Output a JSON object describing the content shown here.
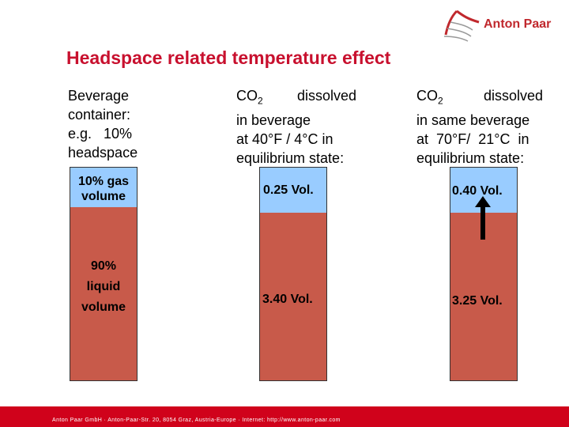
{
  "logo": {
    "text": "Anton Paar"
  },
  "title": "Headspace related temperature effect",
  "columns": [
    {
      "lines": [
        "Beverage",
        "container:",
        "e.g.   10%",
        "headspace"
      ]
    },
    {
      "co2": "CO",
      "co2_sub": "2",
      "after": "dissolved",
      "lines": [
        "in beverage",
        "at 40°F / 4°C in",
        "equilibrium state:"
      ]
    },
    {
      "co2": "CO",
      "co2_sub": "2",
      "after": "dissolved",
      "lines": [
        "in same beverage",
        "at  70°F/  21°C  in",
        "equilibrium state:"
      ]
    }
  ],
  "glass1": {
    "gas_label_1": "10% gas",
    "gas_label_2": "volume",
    "liquid_label_1": "90%",
    "liquid_label_2": "liquid",
    "liquid_label_3": "volume",
    "gas_fraction": 0.1
  },
  "glass2": {
    "gas_value": "0.25 Vol.",
    "liquid_value": "3.40 Vol."
  },
  "glass3": {
    "gas_value": "0.40 Vol.",
    "liquid_value": "3.25 Vol."
  },
  "colors": {
    "gas": "#99ccff",
    "liquid": "#c85a4a",
    "title": "#c8102e",
    "footer": "#d0021b"
  },
  "footer": "Anton Paar GmbH · Anton-Paar-Str. 20, 8054 Graz, Austria-Europe · Internet: http://www.anton-paar.com"
}
